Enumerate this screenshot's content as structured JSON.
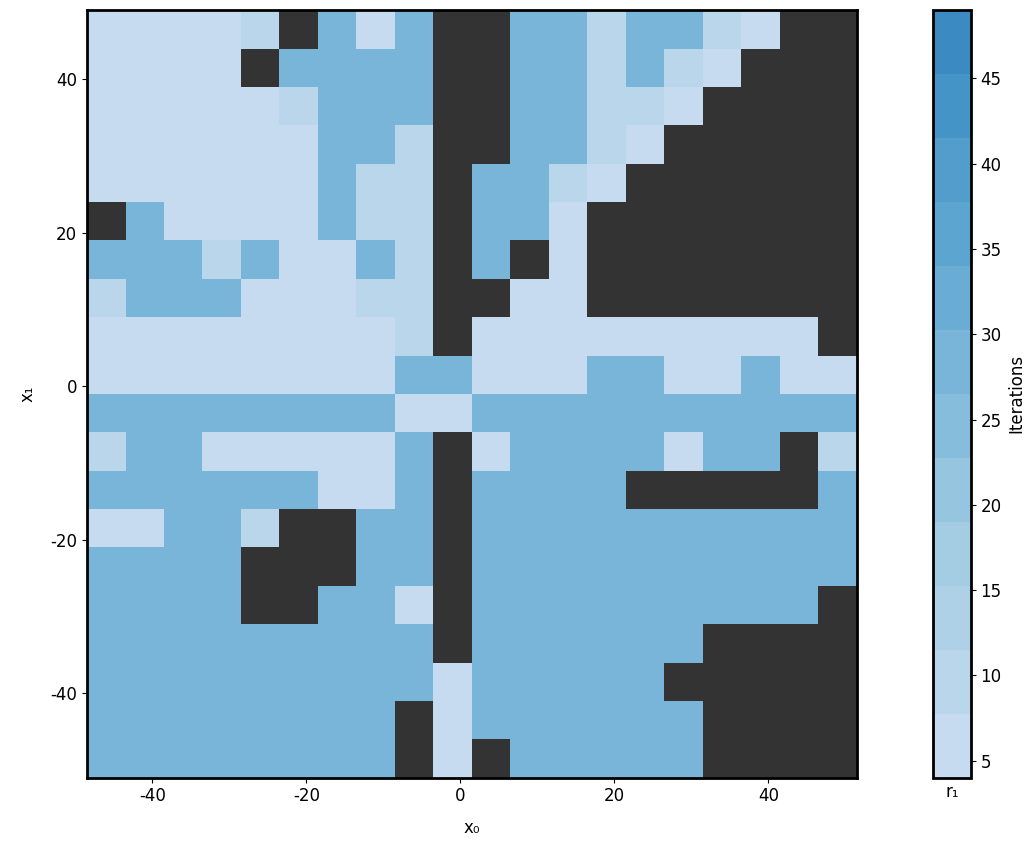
{
  "chart_data": {
    "type": "heatmap",
    "x_label": "x₀",
    "y_label": "x₁",
    "colorbar_label": "Iterations",
    "colorbar_xlabel": "r₁",
    "xlim": [
      -48.5,
      51.5
    ],
    "ylim": [
      -51,
      49
    ],
    "xticks": [
      -40,
      -20,
      0,
      20,
      40
    ],
    "yticks": [
      -40,
      -20,
      0,
      20,
      40
    ],
    "x": [
      -48.5,
      -43.5,
      -38.5,
      -33.5,
      -28.5,
      -23.5,
      -18.5,
      -13.5,
      -8.5,
      -3.5,
      1.5,
      6.5,
      11.5,
      16.5,
      21.5,
      26.5,
      31.5,
      36.5,
      41.5,
      46.5,
      51.5
    ],
    "y": [
      49,
      44,
      39,
      34,
      29,
      24,
      19,
      14,
      9,
      4,
      -1,
      -6,
      -11,
      -16,
      -21,
      -26,
      -31,
      -36,
      -41,
      -46,
      -51
    ],
    "cells": [
      [
        6,
        6,
        6,
        6,
        8,
        null,
        28,
        6,
        28,
        null,
        null,
        28,
        28,
        8,
        28,
        28,
        8,
        6,
        null,
        null
      ],
      [
        6,
        6,
        6,
        6,
        null,
        28,
        28,
        28,
        28,
        null,
        null,
        28,
        28,
        8,
        28,
        8,
        6,
        null,
        null,
        null
      ],
      [
        6,
        6,
        6,
        6,
        6,
        8,
        28,
        28,
        28,
        null,
        null,
        28,
        28,
        8,
        8,
        6,
        null,
        null,
        null,
        null
      ],
      [
        6,
        6,
        6,
        6,
        6,
        6,
        28,
        28,
        8,
        null,
        null,
        28,
        28,
        8,
        6,
        null,
        null,
        null,
        null,
        null
      ],
      [
        6,
        6,
        6,
        6,
        6,
        6,
        28,
        8,
        8,
        null,
        28,
        28,
        8,
        6,
        null,
        null,
        null,
        null,
        null,
        null
      ],
      [
        null,
        28,
        6,
        6,
        6,
        6,
        28,
        8,
        8,
        null,
        28,
        28,
        6,
        null,
        null,
        null,
        null,
        null,
        null,
        null
      ],
      [
        28,
        28,
        28,
        8,
        28,
        6,
        6,
        28,
        8,
        null,
        28,
        null,
        6,
        null,
        null,
        null,
        null,
        null,
        null,
        null
      ],
      [
        8,
        28,
        28,
        28,
        6,
        6,
        6,
        8,
        8,
        null,
        null,
        6,
        6,
        null,
        null,
        null,
        null,
        null,
        null,
        null
      ],
      [
        6,
        6,
        6,
        6,
        6,
        6,
        6,
        6,
        8,
        null,
        6,
        6,
        6,
        6,
        6,
        6,
        6,
        6,
        6,
        null
      ],
      [
        6,
        6,
        6,
        6,
        6,
        6,
        6,
        6,
        28,
        28,
        6,
        6,
        6,
        28,
        28,
        6,
        6,
        28,
        6,
        6
      ],
      [
        28,
        28,
        28,
        28,
        28,
        28,
        28,
        28,
        6,
        6,
        28,
        28,
        28,
        28,
        28,
        28,
        28,
        28,
        28,
        28
      ],
      [
        8,
        28,
        28,
        6,
        6,
        6,
        6,
        6,
        28,
        null,
        6,
        28,
        28,
        28,
        28,
        6,
        28,
        28,
        null,
        8
      ],
      [
        28,
        28,
        28,
        28,
        28,
        28,
        6,
        6,
        28,
        null,
        28,
        28,
        28,
        28,
        null,
        null,
        null,
        null,
        null,
        28
      ],
      [
        6,
        6,
        28,
        28,
        8,
        null,
        null,
        28,
        28,
        null,
        28,
        28,
        28,
        28,
        28,
        28,
        28,
        28,
        28,
        28
      ],
      [
        28,
        28,
        28,
        28,
        null,
        null,
        null,
        28,
        28,
        null,
        28,
        28,
        28,
        28,
        28,
        28,
        28,
        28,
        28,
        28
      ],
      [
        28,
        28,
        28,
        28,
        null,
        null,
        28,
        28,
        6,
        null,
        28,
        28,
        28,
        28,
        28,
        28,
        28,
        28,
        28,
        null
      ],
      [
        28,
        28,
        28,
        28,
        28,
        28,
        28,
        28,
        28,
        null,
        28,
        28,
        28,
        28,
        28,
        28,
        null,
        null,
        null,
        null
      ],
      [
        28,
        28,
        28,
        28,
        28,
        28,
        28,
        28,
        28,
        6,
        28,
        28,
        28,
        28,
        28,
        null,
        null,
        null,
        null,
        null
      ],
      [
        28,
        28,
        28,
        28,
        28,
        28,
        28,
        28,
        null,
        6,
        28,
        28,
        28,
        28,
        28,
        28,
        null,
        null,
        null,
        null
      ],
      [
        28,
        28,
        28,
        28,
        28,
        28,
        28,
        28,
        null,
        6,
        null,
        28,
        28,
        28,
        28,
        28,
        null,
        null,
        null,
        null
      ]
    ],
    "colorbar_lim": [
      4,
      49
    ],
    "colorbar_ticks": [
      5,
      10,
      15,
      20,
      25,
      30,
      35,
      40,
      45
    ]
  }
}
